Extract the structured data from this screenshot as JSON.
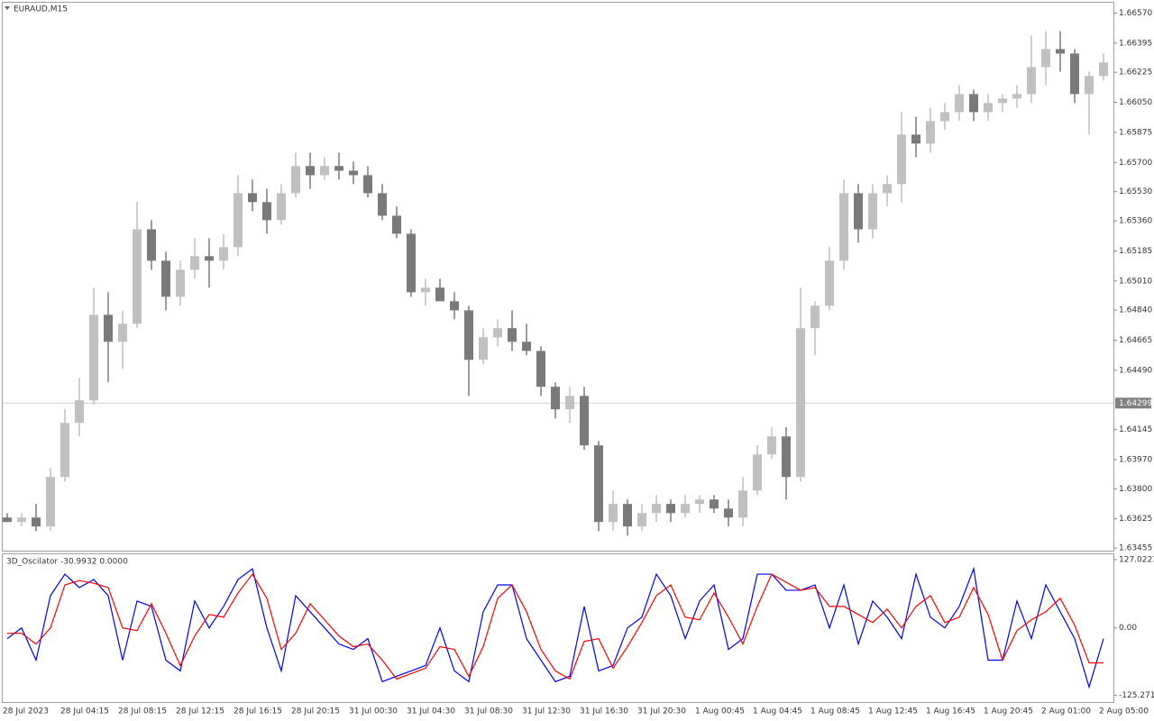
{
  "chart_data": [
    {
      "type": "candlestick",
      "title": "EURAUD,M15",
      "categories": [
        "28 Jul 2023",
        null,
        null,
        null,
        "28 Jul 04:15",
        null,
        null,
        null,
        "28 Jul 08:15",
        null,
        null,
        null,
        "28 Jul 12:15",
        null,
        null,
        null,
        "28 Jul 16:15",
        null,
        null,
        null,
        "28 Jul 20:15",
        null,
        null,
        null,
        "31 Jul 00:30",
        null,
        null,
        null,
        "31 Jul 04:30",
        null,
        null,
        null,
        "31 Jul 08:30",
        null,
        null,
        null,
        "31 Jul 12:30",
        null,
        null,
        null,
        "31 Jul 16:30",
        null,
        null,
        null,
        "31 Jul 20:30",
        null,
        null,
        null,
        "1 Aug 00:45",
        null,
        null,
        null,
        "1 Aug 04:45",
        null,
        null,
        null,
        "1 Aug 08:45",
        null,
        null,
        null,
        "1 Aug 12:45",
        null,
        null,
        null,
        "1 Aug 16:45",
        null,
        null,
        null,
        "1 Aug 20:45",
        null,
        null,
        null,
        "2 Aug 01:00",
        null,
        null,
        null,
        "2 Aug 05:00"
      ],
      "ohlc": [
        [
          1.63633,
          1.63659,
          1.63607,
          1.63607
        ],
        [
          1.63607,
          1.63659,
          1.63581,
          1.63633
        ],
        [
          1.63633,
          1.63712,
          1.63554,
          1.63581
        ],
        [
          1.63581,
          1.63922,
          1.63554,
          1.63869
        ],
        [
          1.63869,
          1.64263,
          1.63843,
          1.64184
        ],
        [
          1.64184,
          1.64446,
          1.64105,
          1.64315
        ],
        [
          1.64315,
          1.64971,
          1.64289,
          1.64813
        ],
        [
          1.64813,
          1.64944,
          1.6442,
          1.64656
        ],
        [
          1.64656,
          1.64839,
          1.64499,
          1.64761
        ],
        [
          1.64761,
          1.65469,
          1.64735,
          1.65311
        ],
        [
          1.65311,
          1.65364,
          1.65075,
          1.65128
        ],
        [
          1.65128,
          1.6518,
          1.64839,
          1.64918
        ],
        [
          1.64918,
          1.65128,
          1.64866,
          1.65075
        ],
        [
          1.65075,
          1.65259,
          1.65023,
          1.65154
        ],
        [
          1.65154,
          1.65259,
          1.64971,
          1.65128
        ],
        [
          1.65128,
          1.65285,
          1.65075,
          1.65207
        ],
        [
          1.65207,
          1.65626,
          1.65154,
          1.65521
        ],
        [
          1.65521,
          1.656,
          1.65416,
          1.65469
        ],
        [
          1.65469,
          1.65547,
          1.65285,
          1.65364
        ],
        [
          1.65364,
          1.65574,
          1.65338,
          1.65521
        ],
        [
          1.65521,
          1.65757,
          1.65495,
          1.65679
        ],
        [
          1.65679,
          1.65757,
          1.65547,
          1.65626
        ],
        [
          1.65626,
          1.65731,
          1.656,
          1.65679
        ],
        [
          1.65679,
          1.65757,
          1.656,
          1.65652
        ],
        [
          1.65652,
          1.65705,
          1.65574,
          1.65626
        ],
        [
          1.65626,
          1.65679,
          1.65495,
          1.65521
        ],
        [
          1.65521,
          1.65574,
          1.65364,
          1.6539
        ],
        [
          1.6539,
          1.65443,
          1.65259,
          1.65285
        ],
        [
          1.65285,
          1.65311,
          1.64918,
          1.64944
        ],
        [
          1.64944,
          1.65023,
          1.64866,
          1.64971
        ],
        [
          1.64971,
          1.65023,
          1.64892,
          1.64892
        ],
        [
          1.64892,
          1.64944,
          1.64787,
          1.64839
        ],
        [
          1.64839,
          1.64866,
          1.64341,
          1.64551
        ],
        [
          1.64551,
          1.64735,
          1.64525,
          1.64682
        ],
        [
          1.64682,
          1.64787,
          1.6463,
          1.64735
        ],
        [
          1.64735,
          1.64839,
          1.64603,
          1.64656
        ],
        [
          1.64656,
          1.64761,
          1.64577,
          1.64603
        ],
        [
          1.64603,
          1.6463,
          1.64341,
          1.64394
        ],
        [
          1.64394,
          1.6442,
          1.6421,
          1.64263
        ],
        [
          1.64263,
          1.64394,
          1.64184,
          1.64341
        ],
        [
          1.64341,
          1.64394,
          1.64027,
          1.64053
        ],
        [
          1.64053,
          1.64079,
          1.63554,
          1.63607
        ],
        [
          1.63607,
          1.6379,
          1.63554,
          1.63712
        ],
        [
          1.63712,
          1.63738,
          1.63528,
          1.63581
        ],
        [
          1.63581,
          1.63712,
          1.63554,
          1.63659
        ],
        [
          1.63659,
          1.63764,
          1.63607,
          1.63712
        ],
        [
          1.63712,
          1.63738,
          1.63607,
          1.63659
        ],
        [
          1.63659,
          1.63764,
          1.63633,
          1.63712
        ],
        [
          1.63712,
          1.63764,
          1.63659,
          1.63738
        ],
        [
          1.63738,
          1.63764,
          1.63659,
          1.63685
        ],
        [
          1.63685,
          1.63738,
          1.63581,
          1.63633
        ],
        [
          1.63633,
          1.63869,
          1.63581,
          1.6379
        ],
        [
          1.6379,
          1.64053,
          1.63764,
          1.64
        ],
        [
          1.64,
          1.64158,
          1.63974,
          1.64105
        ],
        [
          1.64105,
          1.64158,
          1.63738,
          1.63869
        ],
        [
          1.63869,
          1.64971,
          1.63843,
          1.64735
        ],
        [
          1.64735,
          1.64892,
          1.64577,
          1.64866
        ],
        [
          1.64866,
          1.65207,
          1.64839,
          1.65128
        ],
        [
          1.65128,
          1.656,
          1.65075,
          1.65521
        ],
        [
          1.65521,
          1.65574,
          1.65233,
          1.65311
        ],
        [
          1.65311,
          1.65574,
          1.65259,
          1.65521
        ],
        [
          1.65521,
          1.65626,
          1.65443,
          1.65574
        ],
        [
          1.65574,
          1.65993,
          1.65469,
          1.65862
        ],
        [
          1.65862,
          1.65967,
          1.65731,
          1.6581
        ],
        [
          1.6581,
          1.66019,
          1.65757,
          1.65941
        ],
        [
          1.65941,
          1.66046,
          1.65888,
          1.65993
        ],
        [
          1.65993,
          1.6615,
          1.65941,
          1.66098
        ],
        [
          1.66098,
          1.66124,
          1.65941,
          1.65993
        ],
        [
          1.65993,
          1.66098,
          1.65941,
          1.66046
        ],
        [
          1.66046,
          1.66098,
          1.65993,
          1.66072
        ],
        [
          1.66072,
          1.6615,
          1.66019,
          1.66098
        ],
        [
          1.66098,
          1.66439,
          1.66046,
          1.66255
        ],
        [
          1.66255,
          1.66465,
          1.6615,
          1.6636
        ],
        [
          1.6636,
          1.66465,
          1.66229,
          1.66334
        ],
        [
          1.66334,
          1.6636,
          1.66046,
          1.66098
        ],
        [
          1.66098,
          1.66229,
          1.65862,
          1.66203
        ],
        [
          1.66203,
          1.66334,
          1.66177,
          1.66282
        ]
      ],
      "up_color": "#c0c0c0",
      "down_color": "#7a7a7a",
      "ylim": [
        1.6344,
        1.6663
      ],
      "yticks": [
        {
          "value": 1.6657,
          "label": "1.66570"
        },
        1.66395,
        1.66225,
        {
          "value": 1.6605,
          "label": "1.66050"
        },
        1.65875,
        {
          "value": 1.657,
          "label": "1.65700"
        },
        {
          "value": 1.6553,
          "label": "1.65530"
        },
        {
          "value": 1.6536,
          "label": "1.65360"
        },
        1.65185,
        {
          "value": 1.6501,
          "label": "1.65010"
        },
        {
          "value": 1.6484,
          "label": "1.64840"
        },
        1.64665,
        {
          "value": 1.6449,
          "label": "1.64490"
        },
        1.64145,
        {
          "value": 1.6397,
          "label": "1.63970"
        },
        {
          "value": 1.638,
          "label": "1.63800"
        },
        1.63625,
        1.63455
      ],
      "price_line": 1.64299,
      "price_line_color": "#d0d0d0"
    },
    {
      "type": "line",
      "title": "3D_Oscilator -30.9932 0.0000",
      "series": [
        {
          "color": "#0000ff",
          "values": [
            -20,
            0,
            -60,
            60,
            100,
            75,
            90,
            60,
            -60,
            50,
            40,
            -60,
            -80,
            50,
            0,
            40,
            90,
            110,
            0,
            -80,
            60,
            30,
            0,
            -30,
            -40,
            -20,
            -100,
            -90,
            -80,
            -70,
            0,
            -80,
            -100,
            30,
            80,
            80,
            -20,
            -60,
            -100,
            -90,
            40,
            -80,
            -70,
            0,
            20,
            100,
            60,
            -20,
            50,
            80,
            -40,
            -20,
            100,
            100,
            70,
            70,
            80,
            0,
            80,
            -30,
            50,
            20,
            -20,
            100,
            20,
            0,
            40,
            110,
            -60,
            -60,
            50,
            -20,
            80,
            30,
            -20,
            -110,
            -20
          ]
        },
        {
          "color": "#ff0000",
          "values": [
            -10,
            -10,
            -30,
            0,
            80,
            88,
            83,
            75,
            0,
            -5,
            45,
            -10,
            -70,
            -15,
            25,
            20,
            65,
            100,
            55,
            -40,
            -10,
            45,
            15,
            -15,
            -35,
            -30,
            -60,
            -95,
            -85,
            -75,
            -35,
            -40,
            -90,
            -35,
            55,
            80,
            30,
            -40,
            -80,
            -95,
            -25,
            -20,
            -75,
            -35,
            10,
            60,
            80,
            20,
            15,
            65,
            20,
            -30,
            40,
            100,
            85,
            70,
            75,
            40,
            40,
            25,
            10,
            35,
            0,
            40,
            60,
            10,
            20,
            75,
            25,
            -60,
            -5,
            15,
            30,
            55,
            5,
            -65,
            -65
          ]
        }
      ],
      "ylim": [
        -138,
        137
      ],
      "yticks": [
        127.0223,
        {
          "value": 0,
          "label": "0.00"
        },
        -125.2715
      ]
    }
  ]
}
